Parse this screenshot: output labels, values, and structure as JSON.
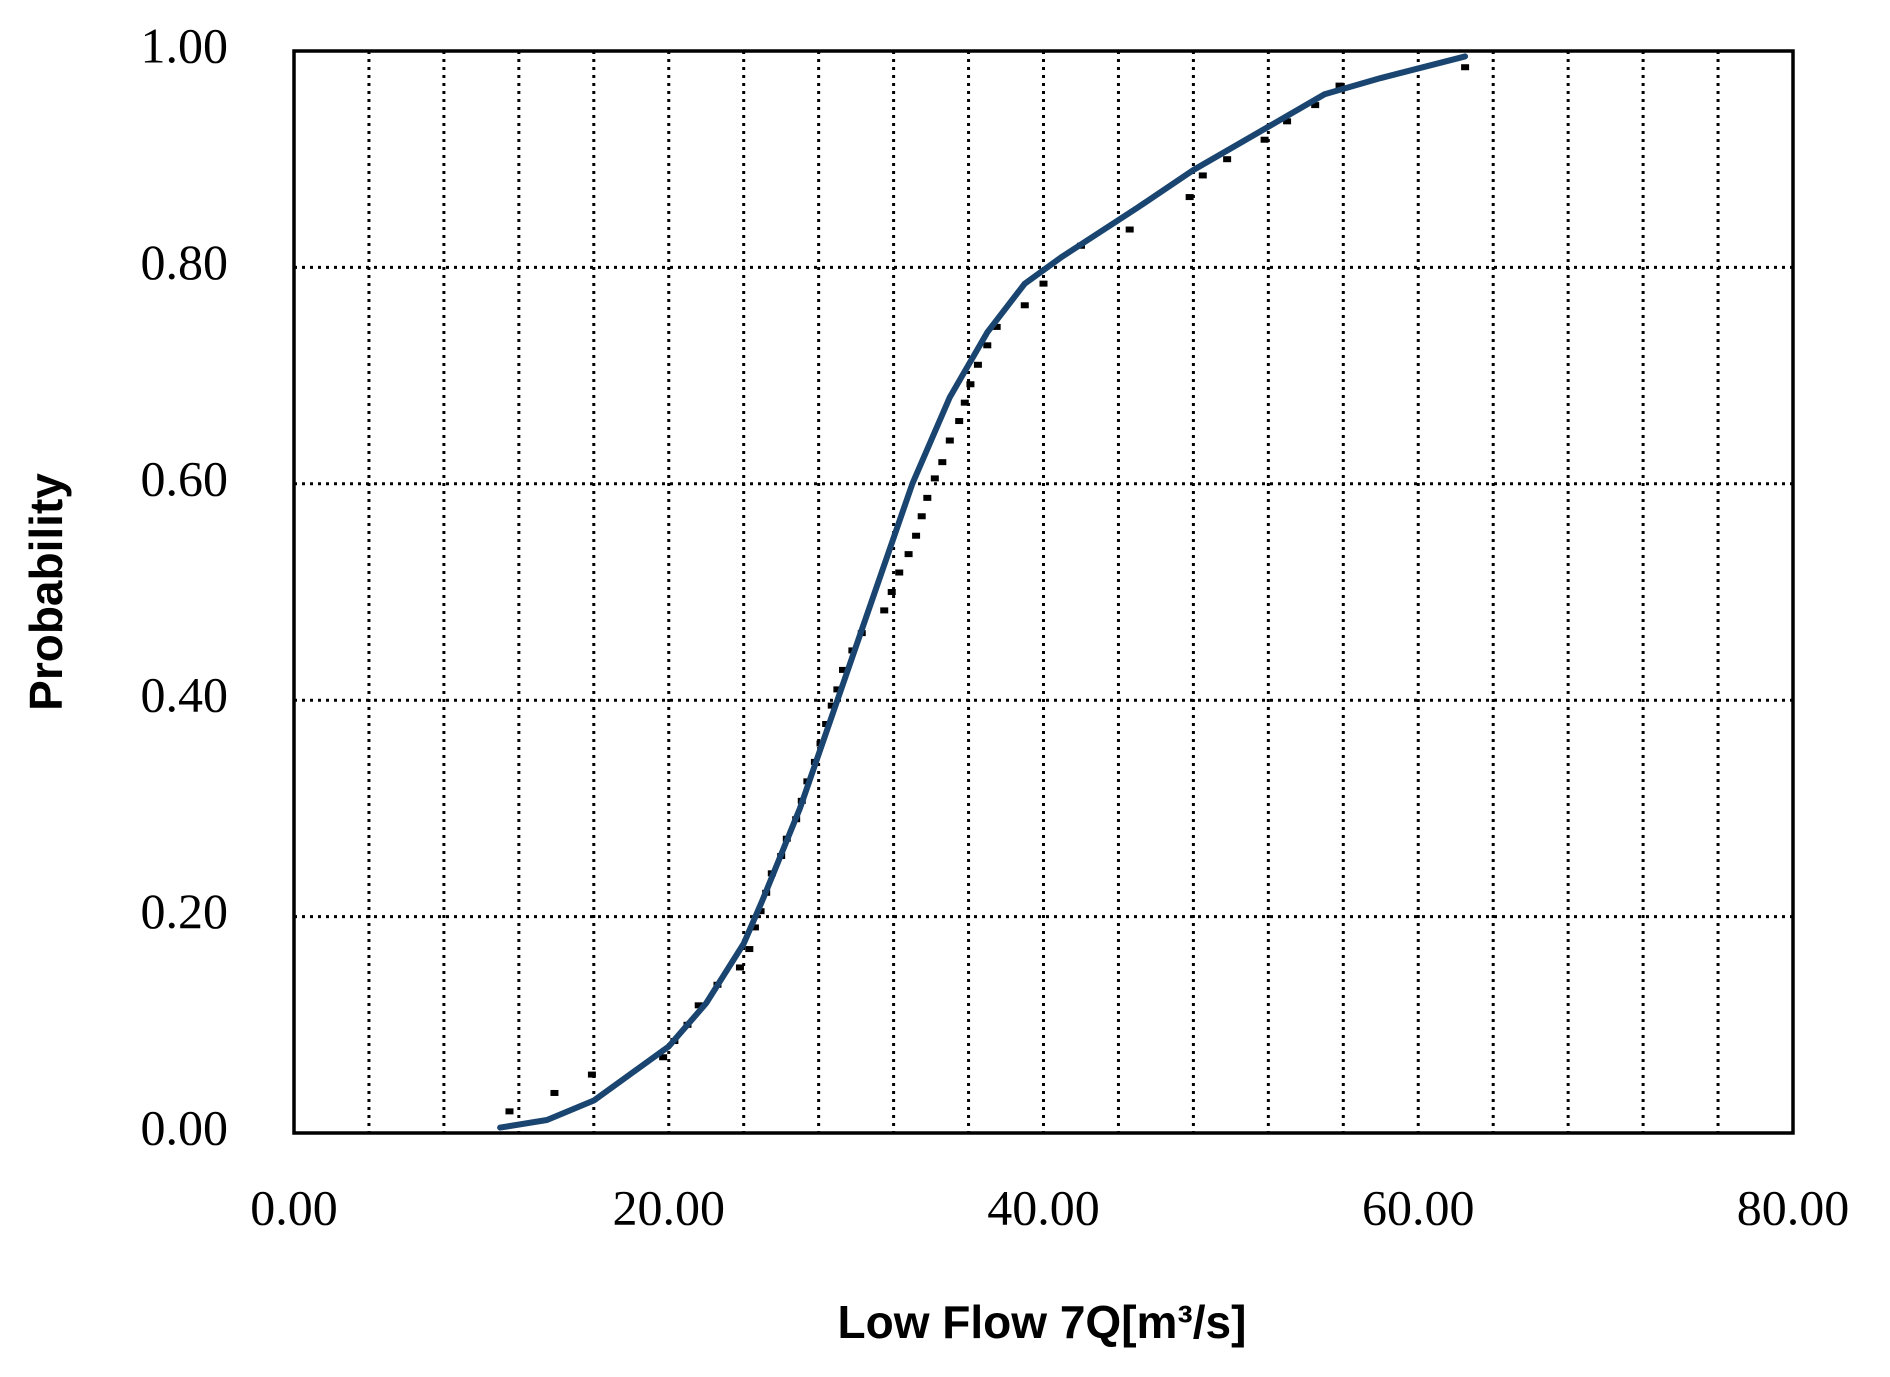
{
  "chart_data": {
    "type": "scatter",
    "xlabel": "Low Flow 7Q[m³/s]",
    "ylabel": "Probability",
    "xlim": [
      0,
      80
    ],
    "ylim": [
      0,
      1
    ],
    "xticks": [
      {
        "value": 0,
        "label": "0.00"
      },
      {
        "value": 20,
        "label": "20.00"
      },
      {
        "value": 40,
        "label": "40.00"
      },
      {
        "value": 60,
        "label": "60.00"
      },
      {
        "value": 80,
        "label": "80.00"
      }
    ],
    "yticks": [
      {
        "value": 0,
        "label": "0.00"
      },
      {
        "value": 0.2,
        "label": "0.20"
      },
      {
        "value": 0.4,
        "label": "0.40"
      },
      {
        "value": 0.6,
        "label": "0.60"
      },
      {
        "value": 0.8,
        "label": "0.80"
      },
      {
        "value": 1,
        "label": "1.00"
      }
    ],
    "xgrid": [
      4,
      8,
      12,
      16,
      20,
      24,
      28,
      32,
      36,
      40,
      44,
      48,
      52,
      56,
      60,
      64,
      68,
      72,
      76
    ],
    "ygrid": [
      0.2,
      0.4,
      0.6,
      0.8
    ],
    "grid": true,
    "series": [
      {
        "style": "markers",
        "color": "#000000",
        "x": [
          11.5,
          13.9,
          15.9,
          19.7,
          20.3,
          21.0,
          21.6,
          22.6,
          23.8,
          24.3,
          24.6,
          24.9,
          25.2,
          25.5,
          26.0,
          26.3,
          26.8,
          27.1,
          27.4,
          27.8,
          28.1,
          28.4,
          28.7,
          29.0,
          29.3,
          29.8,
          30.3,
          31.5,
          31.9,
          32.3,
          32.8,
          33.2,
          33.5,
          33.8,
          34.2,
          34.6,
          35.0,
          35.5,
          35.8,
          36.1,
          36.5,
          37.0,
          37.5,
          39.0,
          40.0,
          42.0,
          44.6,
          47.8,
          48.5,
          49.8,
          51.8,
          53.0,
          54.5,
          55.8,
          62.5
        ],
        "values": [
          0.02,
          0.037,
          0.054,
          0.07,
          0.085,
          0.1,
          0.118,
          0.137,
          0.153,
          0.17,
          0.19,
          0.205,
          0.222,
          0.24,
          0.256,
          0.272,
          0.29,
          0.307,
          0.325,
          0.343,
          0.36,
          0.378,
          0.395,
          0.41,
          0.428,
          0.446,
          0.462,
          0.483,
          0.5,
          0.518,
          0.535,
          0.552,
          0.57,
          0.587,
          0.605,
          0.62,
          0.64,
          0.658,
          0.675,
          0.692,
          0.71,
          0.728,
          0.745,
          0.765,
          0.785,
          0.82,
          0.835,
          0.865,
          0.885,
          0.9,
          0.918,
          0.935,
          0.95,
          0.968,
          0.985
        ]
      },
      {
        "style": "line",
        "color": "#1a4570",
        "x": [
          11,
          13.5,
          16,
          20,
          22,
          24,
          25,
          27,
          29,
          31,
          33,
          35,
          37,
          39,
          41,
          45,
          48,
          52,
          55,
          58,
          62.5
        ],
        "values": [
          0.005,
          0.012,
          0.03,
          0.08,
          0.12,
          0.175,
          0.215,
          0.3,
          0.4,
          0.5,
          0.6,
          0.68,
          0.74,
          0.785,
          0.81,
          0.855,
          0.89,
          0.93,
          0.96,
          0.975,
          0.995
        ]
      }
    ]
  }
}
